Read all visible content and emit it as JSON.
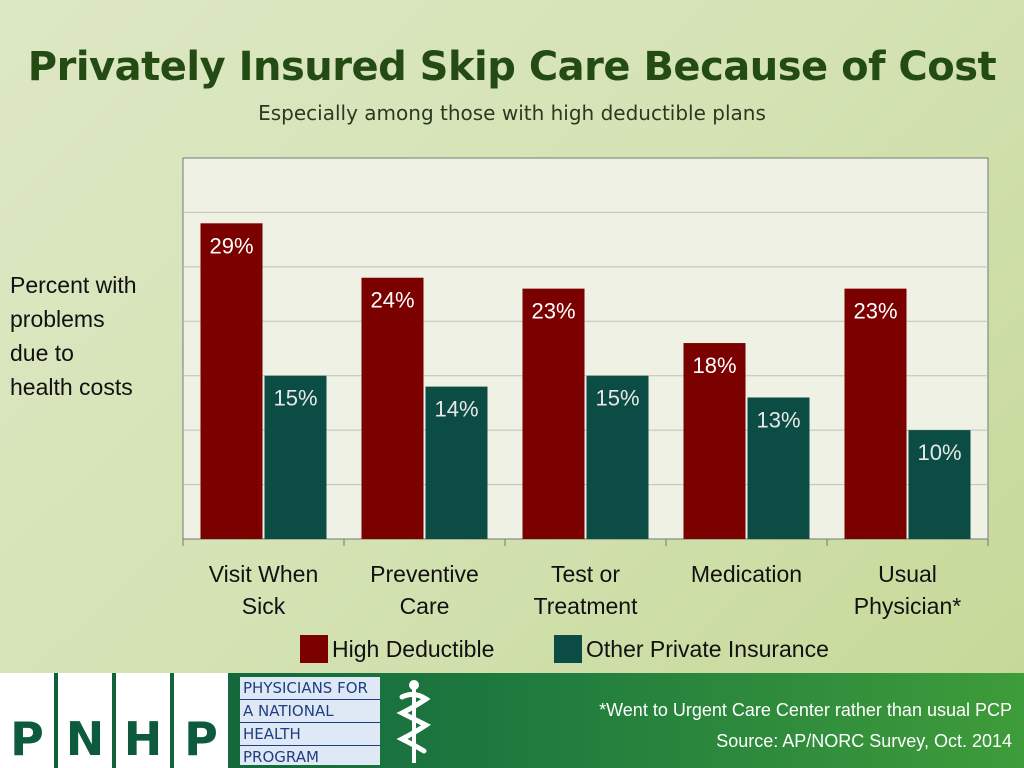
{
  "chart_data": {
    "type": "bar",
    "title": "Privately Insured Skip Care Because of Cost",
    "subtitle": "Especially among those with high deductible plans",
    "ylabel": "Percent with\nproblems\ndue to\nhealth costs",
    "categories": [
      "Visit When\nSick",
      "Preventive\nCare",
      "Test or\nTreatment",
      "Medication",
      "Usual\nPhysician*"
    ],
    "series": [
      {
        "name": "High Deductible",
        "values": [
          29,
          24,
          23,
          18,
          23
        ],
        "labels": [
          "29%",
          "24%",
          "23%",
          "18%",
          "23%"
        ],
        "color": "#7b0000"
      },
      {
        "name": "Other Private Insurance",
        "values": [
          15,
          14,
          15,
          13,
          10
        ],
        "labels": [
          "15%",
          "14%",
          "15%",
          "13%",
          "10%"
        ],
        "color": "#0b4c44"
      }
    ],
    "ylim": [
      0,
      35
    ],
    "grid": true,
    "legend": "bottom"
  },
  "footer": {
    "logo_letters": [
      "P",
      "N",
      "H",
      "P"
    ],
    "logo_lines": [
      "PHYSICIANS FOR",
      "A NATIONAL",
      "HEALTH",
      "PROGRAM"
    ],
    "note": "*Went to Urgent Care Center rather than usual PCP",
    "source": "Source: AP/NORC Survey, Oct. 2014"
  }
}
